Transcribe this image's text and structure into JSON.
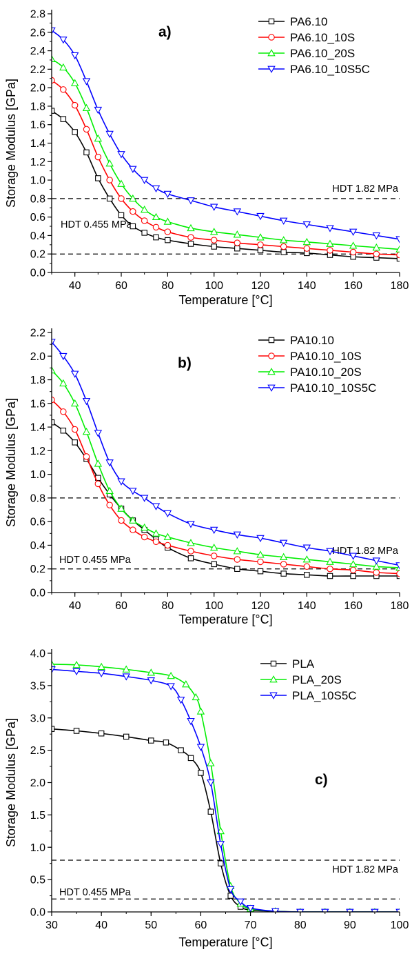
{
  "chart_data": [
    {
      "type": "line",
      "panel_label": "a)",
      "xlabel": "Temperature [°C]",
      "ylabel": "Storage Modulus [GPa]",
      "xlim": [
        30,
        180
      ],
      "ylim": [
        0.0,
        2.8
      ],
      "xticks": [
        40,
        60,
        80,
        100,
        120,
        140,
        160,
        180
      ],
      "xtick_labels": [
        "40",
        "60",
        "80",
        "100",
        "120",
        "140",
        "160",
        "180"
      ],
      "yticks": [
        0.0,
        0.2,
        0.4,
        0.6,
        0.8,
        1.0,
        1.2,
        1.4,
        1.6,
        1.8,
        2.0,
        2.2,
        2.4,
        2.6,
        2.8
      ],
      "ytick_labels": [
        "0.0",
        "0.2",
        "0.4",
        "0.6",
        "0.8",
        "1.0",
        "1.2",
        "1.4",
        "1.6",
        "1.8",
        "2.0",
        "2.2",
        "2.4",
        "2.6",
        "2.8"
      ],
      "reference_lines": [
        {
          "y": 0.8,
          "label": "HDT 1.82 MPa",
          "label_side": "right"
        },
        {
          "y": 0.2,
          "label": "HDT 0.455 MPa",
          "label_side": "left"
        }
      ],
      "legend_position": "top-right",
      "series": [
        {
          "name": "PA6.10",
          "color": "#000000",
          "marker": "square",
          "x": [
            30,
            35,
            40,
            45,
            50,
            55,
            60,
            65,
            70,
            75,
            80,
            90,
            100,
            110,
            120,
            130,
            140,
            150,
            160,
            170,
            180
          ],
          "y": [
            1.75,
            1.66,
            1.52,
            1.3,
            1.02,
            0.8,
            0.62,
            0.5,
            0.43,
            0.38,
            0.35,
            0.31,
            0.28,
            0.26,
            0.24,
            0.22,
            0.21,
            0.19,
            0.17,
            0.16,
            0.15
          ]
        },
        {
          "name": "PA6.10_10S",
          "color": "#ff0000",
          "marker": "circle",
          "x": [
            30,
            35,
            40,
            45,
            50,
            55,
            60,
            65,
            70,
            75,
            80,
            90,
            100,
            110,
            120,
            130,
            140,
            150,
            160,
            170,
            180
          ],
          "y": [
            2.08,
            1.98,
            1.81,
            1.55,
            1.25,
            1.0,
            0.8,
            0.66,
            0.56,
            0.49,
            0.44,
            0.38,
            0.35,
            0.32,
            0.3,
            0.28,
            0.26,
            0.24,
            0.22,
            0.2,
            0.19
          ]
        },
        {
          "name": "PA6.10_20S",
          "color": "#00ee00",
          "marker": "triangle-up",
          "x": [
            30,
            35,
            40,
            45,
            50,
            55,
            60,
            65,
            70,
            75,
            80,
            90,
            100,
            110,
            120,
            130,
            140,
            150,
            160,
            170,
            180
          ],
          "y": [
            2.31,
            2.22,
            2.05,
            1.78,
            1.45,
            1.18,
            0.96,
            0.8,
            0.68,
            0.6,
            0.55,
            0.48,
            0.44,
            0.41,
            0.38,
            0.35,
            0.33,
            0.31,
            0.29,
            0.27,
            0.25
          ]
        },
        {
          "name": "PA6.10_10S5C",
          "color": "#0000ff",
          "marker": "triangle-down",
          "x": [
            30,
            35,
            40,
            45,
            50,
            55,
            60,
            65,
            70,
            75,
            80,
            90,
            100,
            110,
            120,
            130,
            140,
            150,
            160,
            170,
            180
          ],
          "y": [
            2.62,
            2.52,
            2.35,
            2.07,
            1.76,
            1.5,
            1.28,
            1.12,
            1.0,
            0.91,
            0.85,
            0.78,
            0.71,
            0.66,
            0.61,
            0.56,
            0.52,
            0.48,
            0.44,
            0.4,
            0.36
          ]
        }
      ]
    },
    {
      "type": "line",
      "panel_label": "b)",
      "xlabel": "Temperature [°C]",
      "ylabel": "Storage Modulus [GPa]",
      "xlim": [
        30,
        180
      ],
      "ylim": [
        0.0,
        2.2
      ],
      "xticks": [
        40,
        60,
        80,
        100,
        120,
        140,
        160,
        180
      ],
      "xtick_labels": [
        "40",
        "60",
        "80",
        "100",
        "120",
        "140",
        "160",
        "180"
      ],
      "yticks": [
        0.0,
        0.2,
        0.4,
        0.6,
        0.8,
        1.0,
        1.2,
        1.4,
        1.6,
        1.8,
        2.0,
        2.2
      ],
      "ytick_labels": [
        "0.0",
        "0.2",
        "0.4",
        "0.6",
        "0.8",
        "1.0",
        "1.2",
        "1.4",
        "1.6",
        "1.8",
        "2.0",
        "2.2"
      ],
      "reference_lines": [
        {
          "y": 0.8,
          "label": "HDT 1.82 MPa",
          "label_side": "right-below"
        },
        {
          "y": 0.2,
          "label": "HDT 0.455 MPa",
          "label_side": "left"
        }
      ],
      "legend_position": "top-right",
      "series": [
        {
          "name": "PA10.10",
          "color": "#000000",
          "marker": "square",
          "x": [
            30,
            35,
            40,
            45,
            50,
            55,
            60,
            65,
            70,
            75,
            80,
            90,
            100,
            110,
            120,
            130,
            140,
            150,
            160,
            170,
            180
          ],
          "y": [
            1.44,
            1.37,
            1.27,
            1.13,
            0.97,
            0.83,
            0.71,
            0.61,
            0.53,
            0.45,
            0.38,
            0.29,
            0.24,
            0.2,
            0.18,
            0.16,
            0.15,
            0.14,
            0.14,
            0.14,
            0.14
          ]
        },
        {
          "name": "PA10.10_10S",
          "color": "#ff0000",
          "marker": "circle",
          "x": [
            30,
            35,
            40,
            45,
            50,
            55,
            60,
            65,
            70,
            75,
            80,
            90,
            100,
            110,
            120,
            130,
            140,
            150,
            160,
            170,
            180
          ],
          "y": [
            1.63,
            1.53,
            1.38,
            1.15,
            0.92,
            0.74,
            0.61,
            0.53,
            0.47,
            0.43,
            0.4,
            0.35,
            0.31,
            0.28,
            0.26,
            0.24,
            0.22,
            0.2,
            0.19,
            0.17,
            0.16
          ]
        },
        {
          "name": "PA10.10_20S",
          "color": "#00ee00",
          "marker": "triangle-up",
          "x": [
            30,
            35,
            40,
            45,
            50,
            55,
            60,
            65,
            70,
            75,
            80,
            90,
            100,
            110,
            120,
            130,
            140,
            150,
            160,
            170,
            180
          ],
          "y": [
            1.88,
            1.77,
            1.6,
            1.36,
            1.09,
            0.86,
            0.71,
            0.61,
            0.55,
            0.5,
            0.47,
            0.42,
            0.38,
            0.35,
            0.32,
            0.3,
            0.28,
            0.26,
            0.24,
            0.22,
            0.21
          ]
        },
        {
          "name": "PA10.10_10S5C",
          "color": "#0000ff",
          "marker": "triangle-down",
          "x": [
            30,
            35,
            40,
            45,
            50,
            55,
            60,
            65,
            70,
            75,
            80,
            90,
            100,
            110,
            120,
            130,
            140,
            150,
            160,
            170,
            180
          ],
          "y": [
            2.12,
            2.0,
            1.85,
            1.62,
            1.35,
            1.1,
            0.94,
            0.86,
            0.8,
            0.73,
            0.67,
            0.58,
            0.53,
            0.49,
            0.46,
            0.42,
            0.38,
            0.35,
            0.31,
            0.27,
            0.23
          ]
        }
      ]
    },
    {
      "type": "line",
      "panel_label": "c)",
      "xlabel": "Temperature [°C]",
      "ylabel": "Storage Modulus [GPa]",
      "xlim": [
        30,
        100
      ],
      "ylim": [
        0.0,
        4.0
      ],
      "xticks": [
        30,
        40,
        50,
        60,
        70,
        80,
        90,
        100
      ],
      "xtick_labels": [
        "30",
        "40",
        "50",
        "60",
        "70",
        "80",
        "90",
        "100"
      ],
      "yticks": [
        0.0,
        0.5,
        1.0,
        1.5,
        2.0,
        2.5,
        3.0,
        3.5,
        4.0
      ],
      "ytick_labels": [
        "0.0",
        "0.5",
        "1.0",
        "1.5",
        "2.0",
        "2.5",
        "3.0",
        "3.5",
        "4.0"
      ],
      "reference_lines": [
        {
          "y": 0.8,
          "label": "HDT 1.82 MPa",
          "label_side": "right"
        },
        {
          "y": 0.2,
          "label": "HDT 0.455 MPa",
          "label_side": "left"
        }
      ],
      "legend_position": "top-right",
      "series": [
        {
          "name": "PLA",
          "color": "#000000",
          "marker": "square",
          "x": [
            30,
            35,
            40,
            45,
            50,
            53,
            56,
            58,
            60,
            62,
            64,
            66,
            68,
            70,
            75,
            80,
            85,
            90,
            95,
            100
          ],
          "y": [
            2.83,
            2.8,
            2.76,
            2.71,
            2.65,
            2.62,
            2.5,
            2.38,
            2.15,
            1.55,
            0.75,
            0.25,
            0.08,
            0.03,
            0.01,
            0.0,
            0.0,
            0.0,
            0.0,
            0.0
          ]
        },
        {
          "name": "PLA_20S",
          "color": "#00ee00",
          "marker": "triangle-up",
          "x": [
            30,
            35,
            40,
            45,
            50,
            54,
            57,
            59,
            60,
            62,
            64,
            66,
            68,
            70,
            75,
            80,
            85,
            90,
            95,
            100
          ],
          "y": [
            3.83,
            3.82,
            3.79,
            3.75,
            3.7,
            3.65,
            3.52,
            3.32,
            3.1,
            2.3,
            1.25,
            0.4,
            0.13,
            0.05,
            0.01,
            0.0,
            0.0,
            0.0,
            0.0,
            0.0
          ]
        },
        {
          "name": "PLA_10S5C",
          "color": "#0000ff",
          "marker": "triangle-down",
          "x": [
            30,
            35,
            40,
            45,
            50,
            54,
            56,
            58,
            60,
            62,
            64,
            66,
            68,
            70,
            75,
            80,
            85,
            90,
            95,
            100
          ],
          "y": [
            3.75,
            3.72,
            3.69,
            3.64,
            3.58,
            3.49,
            3.28,
            2.95,
            2.55,
            2.0,
            1.05,
            0.35,
            0.16,
            0.06,
            0.01,
            0.0,
            0.0,
            0.0,
            0.0,
            0.0
          ]
        }
      ]
    }
  ]
}
